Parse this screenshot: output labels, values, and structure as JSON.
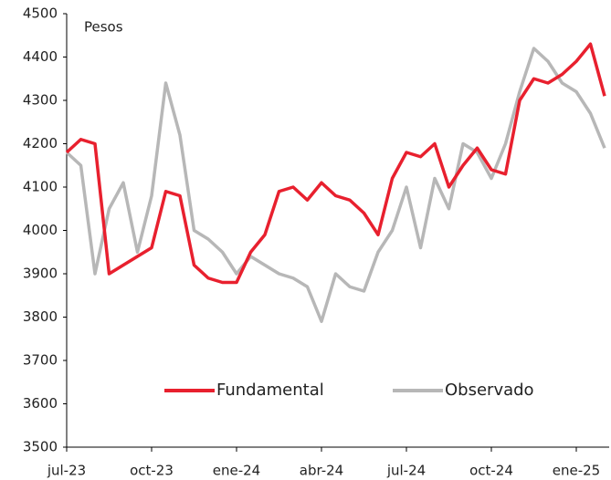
{
  "chart_data": {
    "type": "line",
    "y_label": "Pesos",
    "categories": [
      "jul-23",
      null,
      null,
      null,
      null,
      null,
      "oct-23",
      null,
      null,
      null,
      null,
      null,
      "ene-24",
      null,
      null,
      null,
      null,
      null,
      "abr-24",
      null,
      null,
      null,
      null,
      null,
      "jul-24",
      null,
      null,
      null,
      null,
      null,
      "oct-24",
      null,
      null,
      null,
      null,
      null,
      "ene-25",
      null,
      null
    ],
    "series": [
      {
        "name": "Fundamental",
        "color": "#e8202e",
        "values": [
          4180,
          4210,
          4200,
          3900,
          3920,
          3940,
          3960,
          4090,
          4080,
          3920,
          3890,
          3880,
          3880,
          3950,
          3990,
          4090,
          4100,
          4070,
          4110,
          4080,
          4070,
          4040,
          3990,
          4120,
          4180,
          4170,
          4200,
          4100,
          4150,
          4190,
          4140,
          4130,
          4300,
          4350,
          4340,
          4360,
          4390,
          4430,
          4310
        ]
      },
      {
        "name": "Observado",
        "color": "#b7b7b7",
        "values": [
          4180,
          4150,
          3900,
          4050,
          4110,
          3950,
          4080,
          4340,
          4220,
          4000,
          3980,
          3950,
          3900,
          3940,
          3920,
          3900,
          3890,
          3870,
          3790,
          3900,
          3870,
          3860,
          3950,
          4000,
          4100,
          3960,
          4120,
          4050,
          4200,
          4180,
          4120,
          4200,
          4320,
          4420,
          4390,
          4340,
          4320,
          4270,
          4190
        ]
      }
    ],
    "ylim": [
      3500,
      4500
    ],
    "yticks": [
      3500,
      3600,
      3700,
      3800,
      3900,
      4000,
      4100,
      4200,
      4300,
      4400,
      4500
    ],
    "legend": "bottom"
  }
}
